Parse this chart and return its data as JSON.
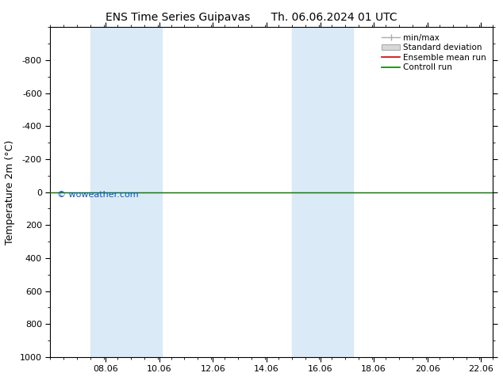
{
  "title_left": "ENS Time Series Guipavas",
  "title_right": "Th. 06.06.2024 01 UTC",
  "ylabel": "Temperature 2m (°C)",
  "ylim_bottom": 1000,
  "ylim_top": -1000,
  "yticks": [
    -800,
    -600,
    -400,
    -200,
    0,
    200,
    400,
    600,
    800,
    1000
  ],
  "xlim": [
    6.0,
    22.5
  ],
  "xticks": [
    8.06,
    10.06,
    12.06,
    14.06,
    16.06,
    18.06,
    20.06,
    22.06
  ],
  "xticklabels": [
    "08.06",
    "10.06",
    "12.06",
    "14.06",
    "16.06",
    "18.06",
    "20.06",
    "22.06"
  ],
  "shaded_bands": [
    {
      "xmin": 7.5,
      "xmax": 10.15
    },
    {
      "xmin": 15.0,
      "xmax": 17.3
    }
  ],
  "shade_color": "#daeaf6",
  "green_line_y": 0,
  "red_line_y": 0,
  "green_line_color": "#008000",
  "red_line_color": "#cc0000",
  "watermark": "© woweather.com",
  "watermark_color": "#0055cc",
  "background_color": "#ffffff",
  "plot_bg_color": "#ffffff",
  "legend_items": [
    "min/max",
    "Standard deviation",
    "Ensemble mean run",
    "Controll run"
  ],
  "legend_line_colors": [
    "#aaaaaa",
    "#cccccc",
    "#cc0000",
    "#008000"
  ],
  "title_fontsize": 10,
  "axis_label_fontsize": 9,
  "tick_fontsize": 8,
  "legend_fontsize": 7.5,
  "watermark_fontsize": 8
}
